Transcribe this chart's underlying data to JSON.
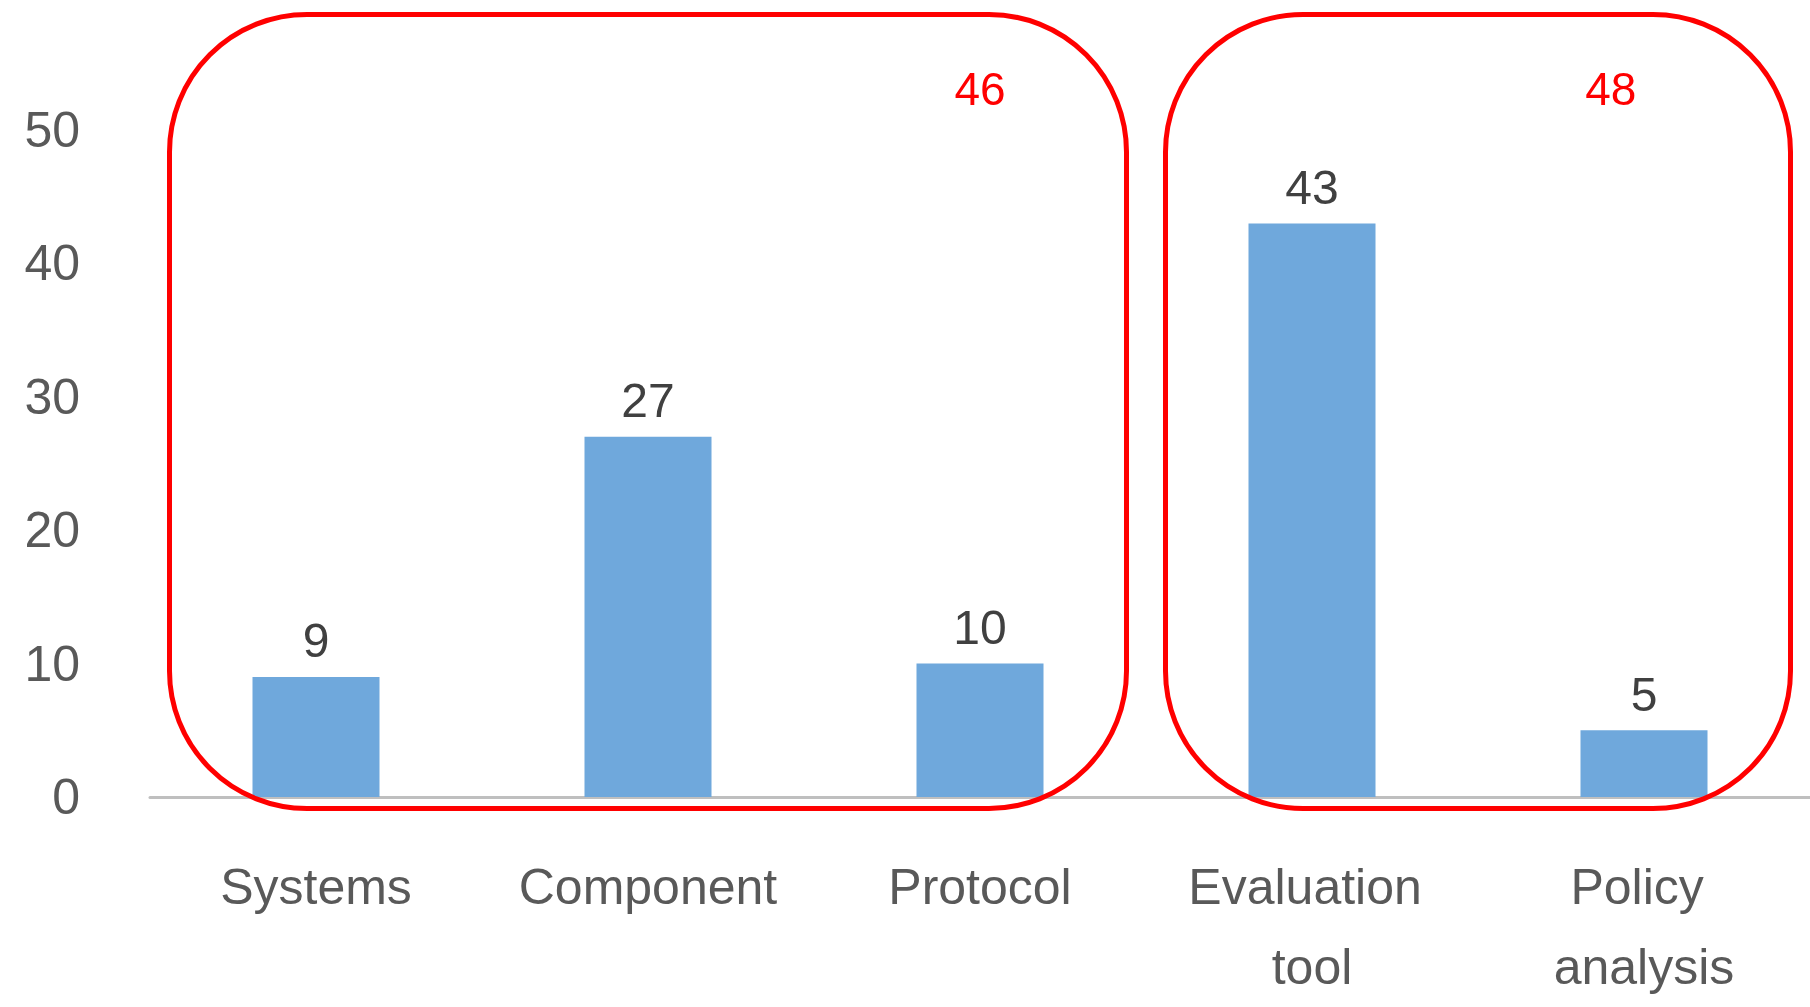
{
  "chart_data": {
    "type": "bar",
    "categories": [
      "Systems",
      "Component",
      "Protocol",
      "Evaluation tool",
      "Policy analysis"
    ],
    "values": [
      9,
      27,
      10,
      43,
      5
    ],
    "color": "#6fa8dc",
    "ylim": [
      0,
      59
    ],
    "yticks": [
      0,
      10,
      20,
      30,
      40,
      50
    ],
    "grid": false,
    "data_labels": true,
    "annotations": [
      "46",
      "48"
    ]
  }
}
